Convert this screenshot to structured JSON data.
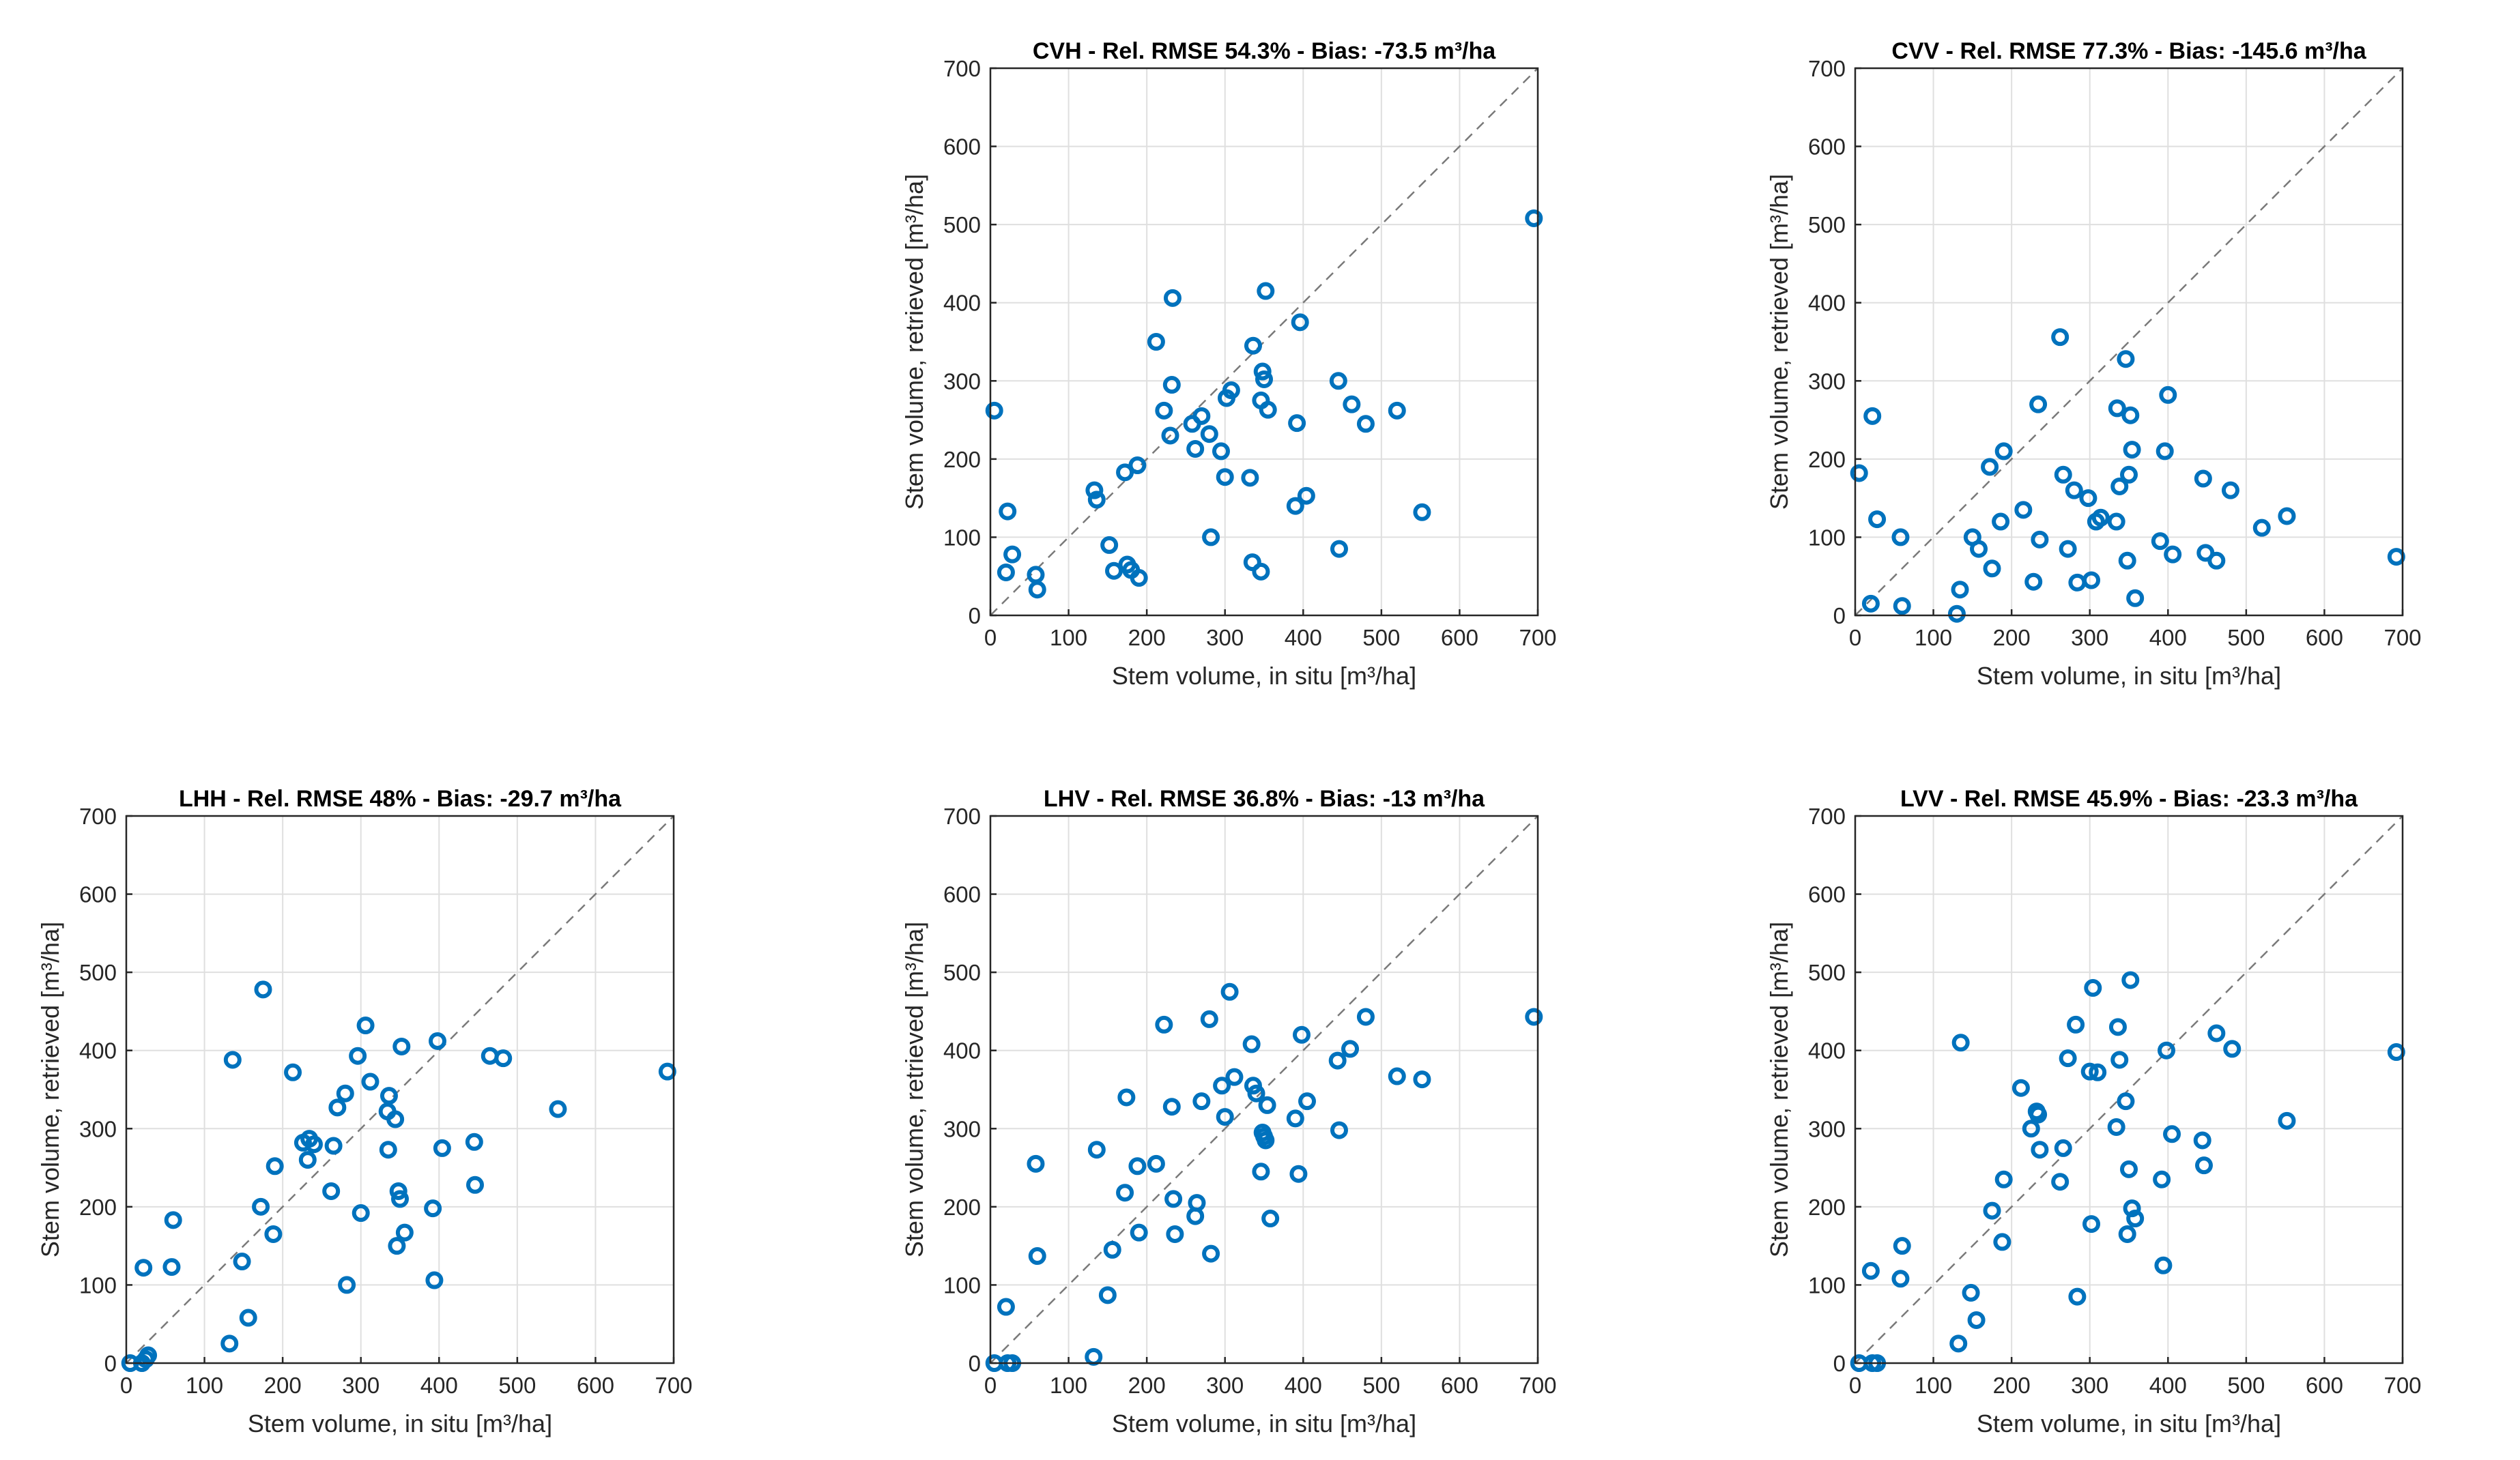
{
  "figure": {
    "colors": {
      "marker": "#0072bd",
      "reference_line": "#7a7a7a",
      "grid": "#dfdfdf"
    },
    "tick_values": [
      0,
      100,
      200,
      300,
      400,
      500,
      600,
      700
    ]
  },
  "chart_data": [
    {
      "id": "cvh",
      "type": "scatter",
      "title": "CVH - Rel. RMSE 54.3% - Bias: -73.5 m³/ha",
      "xlabel": "Stem volume, in situ  [m³/ha]",
      "ylabel": "Stem volume, retrieved  [m³/ha]",
      "xlim": [
        0,
        700
      ],
      "ylim": [
        0,
        700
      ],
      "grid": true,
      "reference_line": "1:1 dashed",
      "points": [
        [
          5,
          262
        ],
        [
          20,
          55
        ],
        [
          22,
          133
        ],
        [
          28,
          78
        ],
        [
          58,
          52
        ],
        [
          60,
          33
        ],
        [
          133,
          160
        ],
        [
          136,
          148
        ],
        [
          152,
          90
        ],
        [
          158,
          57
        ],
        [
          172,
          183
        ],
        [
          175,
          65
        ],
        [
          180,
          58
        ],
        [
          190,
          48
        ],
        [
          188,
          192
        ],
        [
          212,
          350
        ],
        [
          222,
          262
        ],
        [
          230,
          230
        ],
        [
          232,
          295
        ],
        [
          233,
          406
        ],
        [
          258,
          245
        ],
        [
          262,
          213
        ],
        [
          270,
          255
        ],
        [
          280,
          232
        ],
        [
          282,
          100
        ],
        [
          295,
          210
        ],
        [
          300,
          177
        ],
        [
          302,
          278
        ],
        [
          308,
          288
        ],
        [
          332,
          176
        ],
        [
          335,
          68
        ],
        [
          336,
          345
        ],
        [
          346,
          56
        ],
        [
          346,
          275
        ],
        [
          348,
          312
        ],
        [
          350,
          302
        ],
        [
          352,
          415
        ],
        [
          355,
          263
        ],
        [
          390,
          140
        ],
        [
          392,
          246
        ],
        [
          396,
          375
        ],
        [
          404,
          153
        ],
        [
          445,
          300
        ],
        [
          446,
          85
        ],
        [
          462,
          270
        ],
        [
          480,
          245
        ],
        [
          520,
          262
        ],
        [
          552,
          132
        ],
        [
          695,
          508
        ]
      ]
    },
    {
      "id": "cvv",
      "type": "scatter",
      "title": "CVV - Rel. RMSE 77.3% - Bias: -145.6 m³/ha",
      "xlabel": "Stem volume, in situ  [m³/ha]",
      "ylabel": "Stem volume, retrieved  [m³/ha]",
      "xlim": [
        0,
        700
      ],
      "ylim": [
        0,
        700
      ],
      "grid": true,
      "reference_line": "1:1 dashed",
      "points": [
        [
          5,
          182
        ],
        [
          20,
          15
        ],
        [
          22,
          255
        ],
        [
          28,
          123
        ],
        [
          58,
          100
        ],
        [
          60,
          12
        ],
        [
          130,
          2
        ],
        [
          134,
          33
        ],
        [
          150,
          100
        ],
        [
          158,
          85
        ],
        [
          172,
          190
        ],
        [
          175,
          60
        ],
        [
          186,
          120
        ],
        [
          190,
          210
        ],
        [
          215,
          135
        ],
        [
          228,
          43
        ],
        [
          234,
          270
        ],
        [
          236,
          97
        ],
        [
          262,
          356
        ],
        [
          266,
          180
        ],
        [
          272,
          85
        ],
        [
          280,
          160
        ],
        [
          284,
          42
        ],
        [
          298,
          150
        ],
        [
          302,
          45
        ],
        [
          308,
          120
        ],
        [
          314,
          125
        ],
        [
          334,
          120
        ],
        [
          335,
          265
        ],
        [
          338,
          165
        ],
        [
          346,
          328
        ],
        [
          348,
          70
        ],
        [
          350,
          180
        ],
        [
          352,
          256
        ],
        [
          354,
          212
        ],
        [
          358,
          22
        ],
        [
          390,
          95
        ],
        [
          396,
          210
        ],
        [
          400,
          282
        ],
        [
          406,
          78
        ],
        [
          445,
          175
        ],
        [
          448,
          80
        ],
        [
          462,
          70
        ],
        [
          480,
          160
        ],
        [
          520,
          112
        ],
        [
          552,
          127
        ],
        [
          692,
          75
        ]
      ]
    },
    {
      "id": "lhh",
      "type": "scatter",
      "title": "LHH - Rel. RMSE 48% - Bias: -29.7 m³/ha",
      "xlabel": "Stem volume, in situ  [m³/ha]",
      "ylabel": "Stem volume, retrieved  [m³/ha]",
      "xlim": [
        0,
        700
      ],
      "ylim": [
        0,
        700
      ],
      "grid": true,
      "reference_line": "1:1 dashed",
      "points": [
        [
          5,
          0
        ],
        [
          20,
          0
        ],
        [
          22,
          122
        ],
        [
          25,
          5
        ],
        [
          28,
          10
        ],
        [
          58,
          123
        ],
        [
          60,
          183
        ],
        [
          132,
          25
        ],
        [
          136,
          388
        ],
        [
          148,
          130
        ],
        [
          156,
          58
        ],
        [
          172,
          200
        ],
        [
          175,
          478
        ],
        [
          188,
          165
        ],
        [
          190,
          252
        ],
        [
          213,
          372
        ],
        [
          226,
          282
        ],
        [
          232,
          260
        ],
        [
          234,
          287
        ],
        [
          240,
          280
        ],
        [
          262,
          220
        ],
        [
          265,
          278
        ],
        [
          270,
          327
        ],
        [
          280,
          345
        ],
        [
          282,
          100
        ],
        [
          296,
          393
        ],
        [
          300,
          192
        ],
        [
          306,
          432
        ],
        [
          312,
          360
        ],
        [
          334,
          322
        ],
        [
          335,
          273
        ],
        [
          336,
          342
        ],
        [
          344,
          312
        ],
        [
          346,
          150
        ],
        [
          348,
          220
        ],
        [
          350,
          210
        ],
        [
          352,
          405
        ],
        [
          356,
          167
        ],
        [
          392,
          198
        ],
        [
          394,
          106
        ],
        [
          398,
          412
        ],
        [
          404,
          275
        ],
        [
          445,
          283
        ],
        [
          446,
          228
        ],
        [
          465,
          393
        ],
        [
          482,
          390
        ],
        [
          552,
          325
        ],
        [
          692,
          373
        ]
      ]
    },
    {
      "id": "lhv",
      "type": "scatter",
      "title": "LHV - Rel. RMSE 36.8% - Bias: -13 m³/ha",
      "xlabel": "Stem volume, in situ  [m³/ha]",
      "ylabel": "Stem volume, retrieved  [m³/ha]",
      "xlim": [
        0,
        700
      ],
      "ylim": [
        0,
        700
      ],
      "grid": true,
      "reference_line": "1:1 dashed",
      "points": [
        [
          5,
          0
        ],
        [
          20,
          72
        ],
        [
          22,
          0
        ],
        [
          28,
          0
        ],
        [
          58,
          255
        ],
        [
          60,
          137
        ],
        [
          132,
          8
        ],
        [
          136,
          273
        ],
        [
          150,
          87
        ],
        [
          156,
          145
        ],
        [
          172,
          218
        ],
        [
          174,
          340
        ],
        [
          188,
          252
        ],
        [
          190,
          167
        ],
        [
          212,
          255
        ],
        [
          222,
          433
        ],
        [
          232,
          328
        ],
        [
          234,
          210
        ],
        [
          236,
          165
        ],
        [
          262,
          188
        ],
        [
          264,
          205
        ],
        [
          270,
          335
        ],
        [
          280,
          440
        ],
        [
          282,
          140
        ],
        [
          296,
          355
        ],
        [
          300,
          315
        ],
        [
          306,
          475
        ],
        [
          312,
          366
        ],
        [
          334,
          408
        ],
        [
          336,
          355
        ],
        [
          340,
          345
        ],
        [
          346,
          245
        ],
        [
          348,
          295
        ],
        [
          350,
          290
        ],
        [
          352,
          285
        ],
        [
          354,
          330
        ],
        [
          358,
          185
        ],
        [
          390,
          313
        ],
        [
          394,
          242
        ],
        [
          398,
          420
        ],
        [
          405,
          335
        ],
        [
          444,
          387
        ],
        [
          446,
          298
        ],
        [
          460,
          402
        ],
        [
          480,
          443
        ],
        [
          520,
          367
        ],
        [
          552,
          363
        ],
        [
          695,
          443
        ]
      ]
    },
    {
      "id": "lvv",
      "type": "scatter",
      "title": "LVV - Rel. RMSE 45.9% - Bias: -23.3 m³/ha",
      "xlabel": "Stem volume, in situ  [m³/ha]",
      "ylabel": "Stem volume, retrieved  [m³/ha]",
      "xlim": [
        0,
        700
      ],
      "ylim": [
        0,
        700
      ],
      "grid": true,
      "reference_line": "1:1 dashed",
      "points": [
        [
          5,
          0
        ],
        [
          20,
          118
        ],
        [
          22,
          0
        ],
        [
          28,
          0
        ],
        [
          58,
          108
        ],
        [
          60,
          150
        ],
        [
          132,
          25
        ],
        [
          135,
          410
        ],
        [
          148,
          90
        ],
        [
          155,
          55
        ],
        [
          175,
          195
        ],
        [
          188,
          155
        ],
        [
          190,
          235
        ],
        [
          212,
          352
        ],
        [
          225,
          300
        ],
        [
          232,
          322
        ],
        [
          234,
          318
        ],
        [
          236,
          273
        ],
        [
          262,
          232
        ],
        [
          266,
          275
        ],
        [
          272,
          390
        ],
        [
          282,
          433
        ],
        [
          284,
          85
        ],
        [
          300,
          373
        ],
        [
          302,
          178
        ],
        [
          304,
          480
        ],
        [
          310,
          372
        ],
        [
          334,
          302
        ],
        [
          336,
          430
        ],
        [
          338,
          388
        ],
        [
          346,
          335
        ],
        [
          348,
          165
        ],
        [
          350,
          248
        ],
        [
          352,
          490
        ],
        [
          354,
          198
        ],
        [
          358,
          185
        ],
        [
          392,
          235
        ],
        [
          394,
          125
        ],
        [
          398,
          400
        ],
        [
          405,
          293
        ],
        [
          444,
          285
        ],
        [
          446,
          253
        ],
        [
          462,
          422
        ],
        [
          482,
          402
        ],
        [
          552,
          310
        ],
        [
          692,
          398
        ]
      ]
    }
  ]
}
